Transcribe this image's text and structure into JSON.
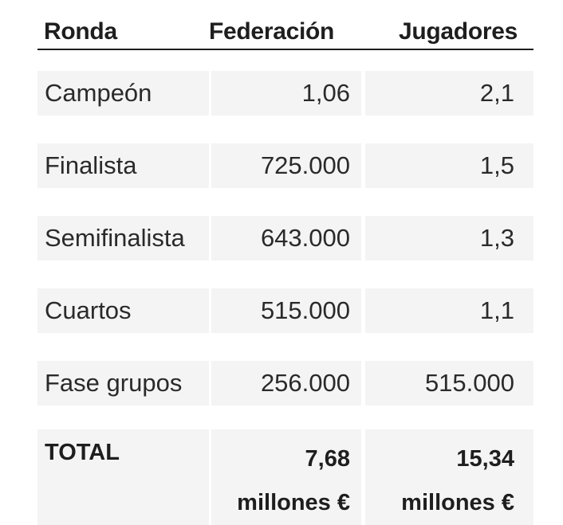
{
  "header": {
    "ronda": "Ronda",
    "federacion": "Federación",
    "jugadores": "Jugadores"
  },
  "rows": [
    {
      "ronda": "Campeón",
      "federacion": "1,06",
      "jugadores": "2,1"
    },
    {
      "ronda": "Finalista",
      "federacion": "725.000",
      "jugadores": "1,5"
    },
    {
      "ronda": "Semifinalista",
      "federacion": "643.000",
      "jugadores": "1,3"
    },
    {
      "ronda": "Cuartos",
      "federacion": "515.000",
      "jugadores": "1,1"
    },
    {
      "ronda": "Fase grupos",
      "federacion": "256.000",
      "jugadores": "515.000"
    }
  ],
  "total": {
    "label": "TOTAL",
    "federacion_value": "7,68",
    "federacion_unit": "millones €",
    "jugadores_value": "15,34",
    "jugadores_unit": "millones €"
  },
  "colors": {
    "text": "#1e1e1e",
    "cell_background": "#f4f4f4",
    "rule": "#1e1e1e"
  }
}
